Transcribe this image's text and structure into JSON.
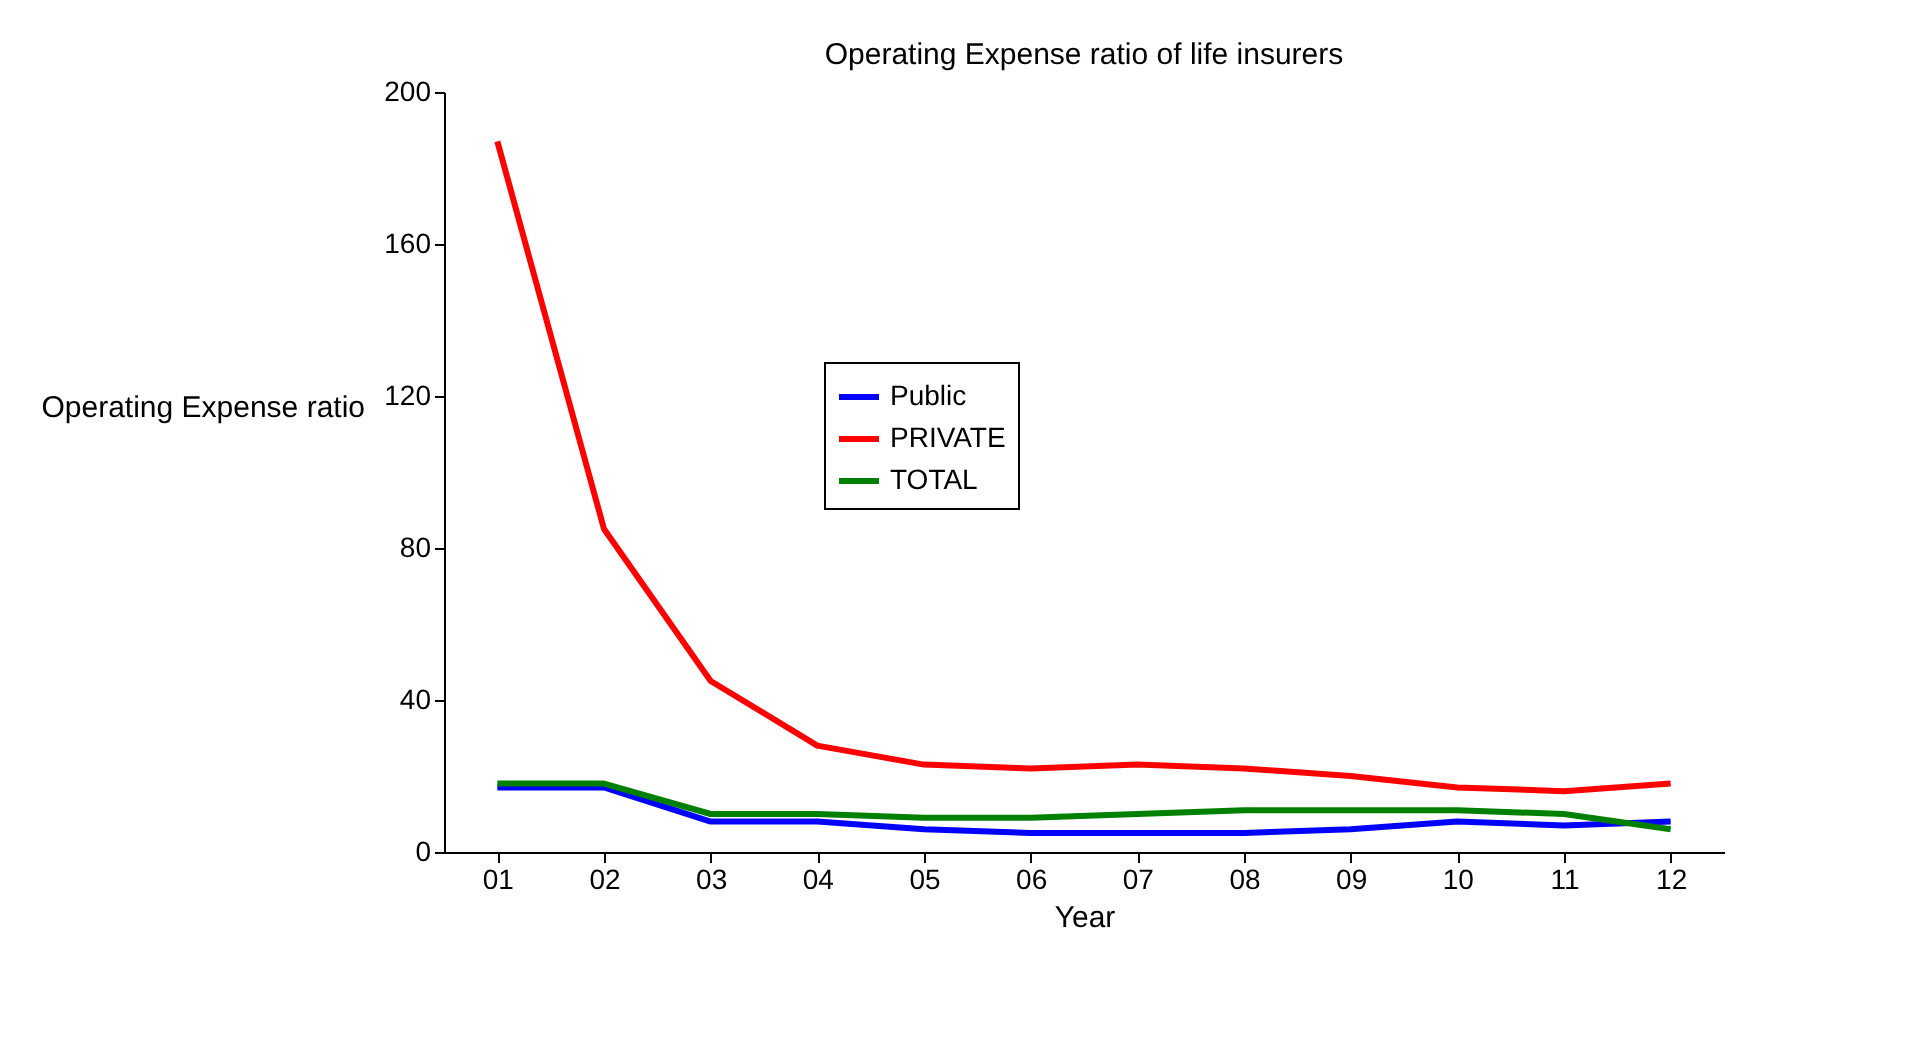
{
  "chart_data": {
    "type": "line",
    "title": "Operating Expense ratio of life insurers",
    "xlabel": "Year",
    "ylabel": "Operating Expense ratio",
    "categories": [
      "01",
      "02",
      "03",
      "04",
      "05",
      "06",
      "07",
      "08",
      "09",
      "10",
      "11",
      "12"
    ],
    "series": [
      {
        "name": "Public",
        "color": "#0000ff",
        "values": [
          17,
          17,
          8,
          8,
          6,
          5,
          5,
          5,
          6,
          8,
          7,
          8
        ]
      },
      {
        "name": "PRIVATE",
        "color": "#ff0000",
        "values": [
          187,
          85,
          45,
          28,
          23,
          22,
          23,
          22,
          20,
          17,
          16,
          18
        ]
      },
      {
        "name": "TOTAL",
        "color": "#008000",
        "values": [
          18,
          18,
          10,
          10,
          9,
          9,
          10,
          11,
          11,
          11,
          10,
          6
        ]
      }
    ],
    "ylim": [
      0,
      200
    ],
    "yticks": [
      0,
      40,
      80,
      120,
      160,
      200
    ],
    "grid": false,
    "legend": "top",
    "marker": "none",
    "line_style": "solid"
  }
}
